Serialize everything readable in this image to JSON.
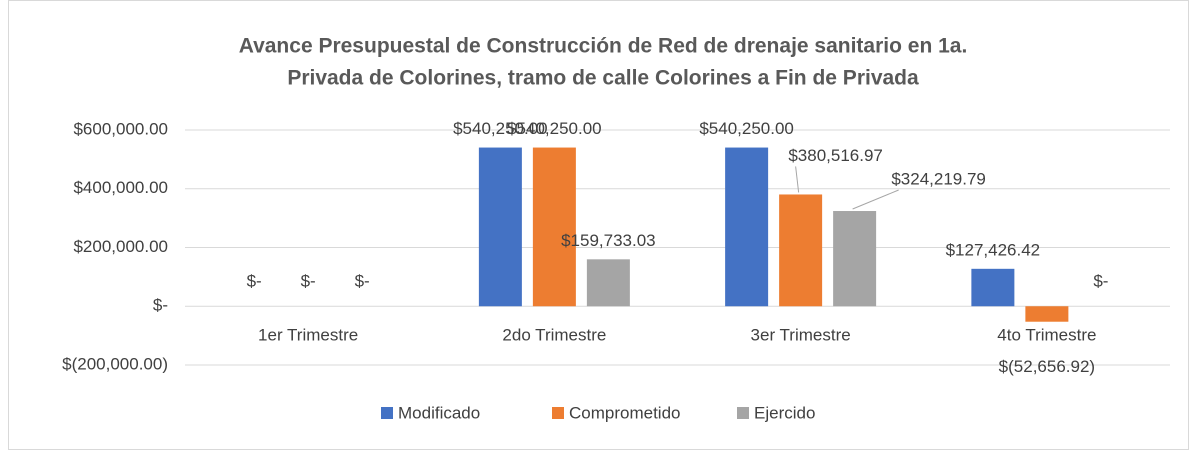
{
  "chart_data": {
    "type": "bar",
    "title": [
      "Avance Presupuestal de Construcción de Red de drenaje sanitario en 1a.",
      "Privada de Colorines, tramo  de calle Colorines a Fin de Privada"
    ],
    "categories": [
      "1er Trimestre",
      "2do Trimestre",
      "3er Trimestre",
      "4to Trimestre"
    ],
    "series": [
      {
        "name": "Modificado",
        "color": "#4472c4",
        "values": [
          0,
          540250,
          540250,
          127426.42
        ],
        "value_labels": [
          "$-",
          "$540,250.00",
          "$540,250.00",
          "$127,426.42"
        ]
      },
      {
        "name": "Comprometido",
        "color": "#ed7d31",
        "values": [
          0,
          540250,
          380516.97,
          -52656.92
        ],
        "value_labels": [
          "$-",
          "$540,250.00",
          "$380,516.97",
          "$(52,656.92)"
        ]
      },
      {
        "name": "Ejercido",
        "color": "#a5a5a5",
        "values": [
          0,
          159733.03,
          324219.79,
          0
        ],
        "value_labels": [
          "$-",
          "$159,733.03",
          "$324,219.79",
          "$-"
        ]
      }
    ],
    "ylim": [
      -200000,
      600000
    ],
    "yticks": [
      {
        "value": -200000,
        "label": "$(200,000.00)"
      },
      {
        "value": 0,
        "label": "$-"
      },
      {
        "value": 200000,
        "label": "$200,000.00"
      },
      {
        "value": 400000,
        "label": "$400,000.00"
      },
      {
        "value": 600000,
        "label": "$600,000.00"
      }
    ],
    "grid": true,
    "legend": "bottom"
  }
}
